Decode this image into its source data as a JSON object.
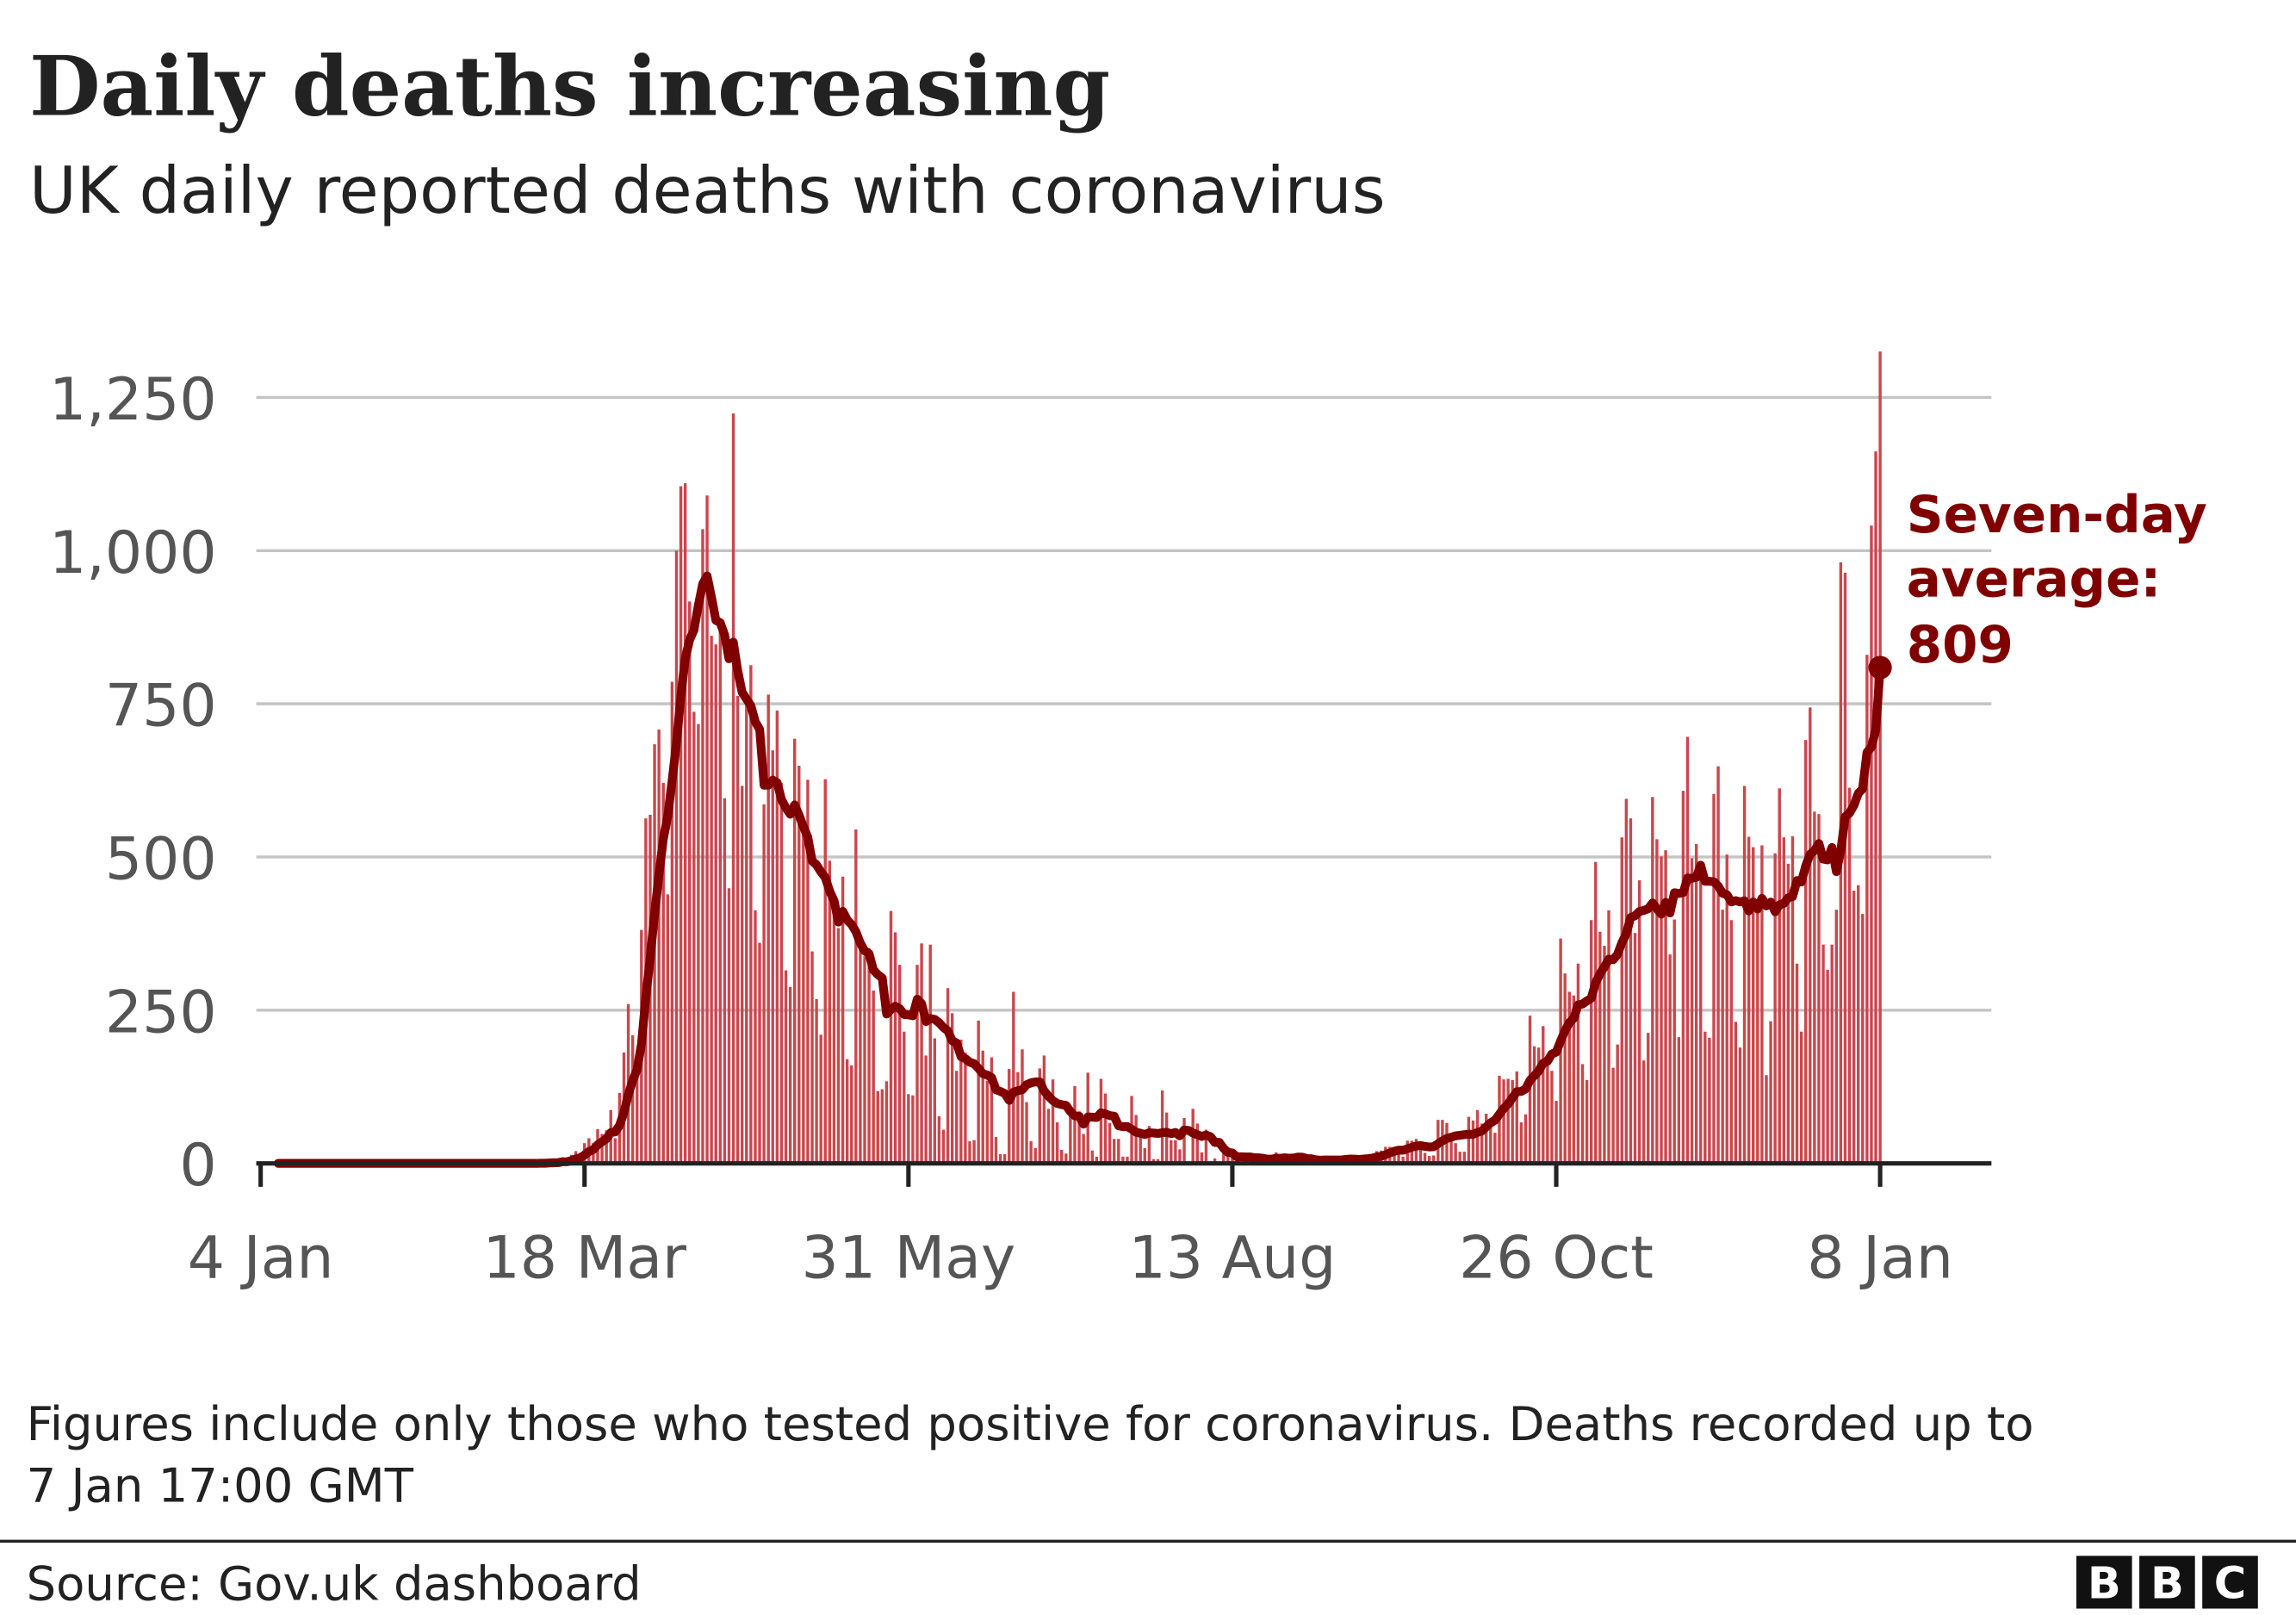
{
  "title": "Daily deaths increasing",
  "subtitle": "UK daily reported deaths with coronavirus",
  "footnote_line1": "Figures include only those who tested positive for coronavirus. Deaths recorded up to",
  "footnote_line2": "7 Jan 17:00 GMT",
  "source": "Source: Gov.uk dashboard",
  "logo": [
    "B",
    "B",
    "C"
  ],
  "colors": {
    "bars": "#c9474d",
    "average_line": "#800000",
    "grid": "#c4c4c4",
    "axis": "#222222"
  },
  "chart_data": {
    "type": "bar",
    "title": "Daily deaths increasing",
    "subtitle": "UK daily reported deaths with coronavirus",
    "xlabel": "",
    "ylabel": "",
    "ylim": [
      0,
      1250
    ],
    "yticks": [
      0,
      250,
      500,
      750,
      1000,
      1250
    ],
    "ytick_labels": [
      "0",
      "250",
      "500",
      "750",
      "1,000",
      "1,250"
    ],
    "xlim": [
      "2020-01-04",
      "2021-01-08"
    ],
    "xticks": [
      "2020-01-04",
      "2020-03-18",
      "2020-05-31",
      "2020-08-13",
      "2020-10-26",
      "2021-01-08"
    ],
    "xtick_labels": [
      "4 Jan",
      "18 Mar",
      "31 May",
      "13 Aug",
      "26 Oct",
      "8 Jan"
    ],
    "grid": true,
    "series": [
      {
        "type": "bar",
        "first_date": "2020-03-07",
        "values": [
          0,
          2,
          0,
          3,
          2,
          1,
          10,
          1,
          14,
          20,
          16,
          33,
          41,
          33,
          56,
          48,
          54,
          87,
          41,
          115,
          181,
          260,
          209,
          180,
          381,
          563,
          569,
          684,
          708,
          621,
          439,
          786,
          1000,
          1105,
          1110,
          917,
          737,
          717,
          1035,
          1090,
          861,
          847,
          888,
          596,
          449,
          1224,
          763,
          616,
          768,
          813,
          413,
          360,
          586,
          765,
          674,
          739,
          621,
          315,
          288,
          693,
          649,
          539,
          626,
          346,
          268,
          210,
          627,
          494,
          428,
          384,
          468,
          170,
          160,
          545,
          363,
          338,
          351,
          282,
          118,
          121,
          134,
          412,
          377,
          324,
          215,
          113,
          111,
          324,
          359,
          176,
          357,
          204,
          77,
          55,
          286,
          245,
          151,
          202,
          181,
          36,
          38,
          233,
          184,
          135,
          173,
          43,
          15,
          15,
          154,
          280,
          149,
          186,
          100,
          36,
          25,
          155,
          176,
          89,
          137,
          67,
          22,
          16,
          85,
          126,
          85,
          48,
          148,
          21,
          11,
          138,
          114,
          66,
          40,
          40,
          11,
          11,
          110,
          79,
          53,
          25,
          61,
          7,
          7,
          119,
          83,
          38,
          38,
          23,
          74,
          1,
          89,
          65,
          18,
          55,
          3,
          8,
          3,
          20,
          18,
          12,
          11,
          3,
          7,
          3,
          12,
          16,
          6,
          2,
          2,
          18,
          3,
          16,
          12,
          9,
          12,
          1,
          2,
          2,
          3,
          8,
          10,
          12,
          2,
          2,
          3,
          8,
          14,
          8,
          6,
          9,
          5,
          11,
          20,
          21,
          27,
          27,
          27,
          18,
          11,
          37,
          37,
          40,
          34,
          17,
          12,
          13,
          71,
          71,
          66,
          49,
          33,
          19,
          19,
          76,
          70,
          87,
          65,
          81,
          65,
          50,
          143,
          137,
          138,
          136,
          150,
          67,
          80,
          241,
          191,
          189,
          224,
          174,
          151,
          102,
          367,
          310,
          280,
          274,
          326,
          162,
          136,
          397,
          492,
          378,
          355,
          413,
          156,
          194,
          532,
          595,
          563,
          376,
          462,
          168,
          213,
          598,
          529,
          501,
          511,
          341,
          398,
          206,
          608,
          696,
          498,
          521,
          479,
          215,
          205,
          603,
          648,
          414,
          504,
          397,
          231,
          189,
          616,
          533,
          516,
          424,
          519,
          144,
          232,
          506,
          612,
          532,
          489,
          534,
          326,
          215,
          691,
          744,
          574,
          570,
          357,
          316,
          357,
          414,
          981,
          964,
          613,
          445,
          454,
          407,
          830,
          1041,
          1162,
          1325
        ]
      },
      {
        "type": "line",
        "name": "Seven-day average"
      }
    ],
    "annotation": {
      "lines": [
        "Seven-day",
        "average:",
        "809"
      ],
      "value": 809,
      "date": "2021-01-08"
    }
  }
}
